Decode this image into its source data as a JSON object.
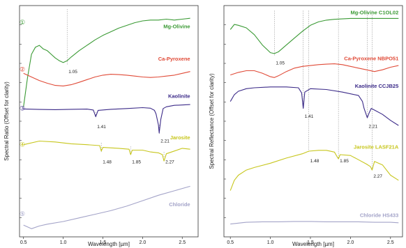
{
  "chart_data": [
    {
      "type": "line",
      "panel": "left",
      "xlabel": "Wavelength [µm]",
      "ylabel": "Spectral Ratio (Offset for clarity)",
      "xlim": [
        0.45,
        2.7
      ],
      "xticks": [
        "0.5",
        "1.0",
        "1.5",
        "2.0",
        "2.5"
      ],
      "xtick_values": [
        0.5,
        1.0,
        1.5,
        2.0,
        2.5
      ],
      "grid": false,
      "series": [
        {
          "name": "Mg-Olivine",
          "number": "①",
          "color": "#3a9a34",
          "x": [
            0.5,
            0.55,
            0.6,
            0.65,
            0.7,
            0.75,
            0.8,
            0.85,
            0.9,
            0.95,
            1.0,
            1.05,
            1.1,
            1.2,
            1.3,
            1.4,
            1.5,
            1.6,
            1.7,
            1.8,
            1.9,
            2.0,
            2.1,
            2.2,
            2.3,
            2.4,
            2.5,
            2.6
          ],
          "y": [
            0.2,
            1.8,
            3.1,
            3.5,
            3.6,
            3.4,
            3.3,
            3.1,
            2.9,
            2.75,
            2.65,
            2.75,
            2.95,
            3.3,
            3.6,
            3.9,
            4.15,
            4.35,
            4.55,
            4.7,
            4.85,
            4.95,
            5.0,
            5.0,
            5.05,
            5.0,
            5.05,
            5.1
          ]
        },
        {
          "name": "Ca-Pyroxene",
          "number": "②",
          "color": "#e04a37",
          "x": [
            0.5,
            0.6,
            0.7,
            0.8,
            0.9,
            1.0,
            1.1,
            1.2,
            1.3,
            1.4,
            1.5,
            1.6,
            1.7,
            1.8,
            1.9,
            2.0,
            2.1,
            2.2,
            2.3,
            2.4,
            2.5,
            2.6
          ],
          "y": [
            2.05,
            1.85,
            1.65,
            1.5,
            1.38,
            1.35,
            1.42,
            1.55,
            1.7,
            1.85,
            1.95,
            2.0,
            1.98,
            1.95,
            1.9,
            1.85,
            1.82,
            1.85,
            1.9,
            1.95,
            2.05,
            2.15
          ]
        },
        {
          "name": "Kaolinite",
          "number": "③",
          "color": "#3b2a88",
          "x": [
            0.5,
            0.7,
            0.9,
            1.1,
            1.3,
            1.38,
            1.41,
            1.44,
            1.6,
            1.8,
            2.0,
            2.1,
            2.15,
            2.17,
            2.2,
            2.21,
            2.23,
            2.26,
            2.3,
            2.4,
            2.5,
            2.6
          ],
          "y": [
            0.08,
            0.05,
            0.04,
            0.06,
            0.07,
            0.02,
            -0.35,
            0.0,
            0.06,
            0.1,
            0.15,
            0.12,
            0.0,
            -0.2,
            -0.8,
            -1.25,
            -0.5,
            0.1,
            0.2,
            0.28,
            0.3,
            0.32
          ]
        },
        {
          "name": "Jarosite",
          "number": "④",
          "color": "#c7c61c",
          "x": [
            0.5,
            0.7,
            0.9,
            1.1,
            1.3,
            1.46,
            1.48,
            1.5,
            1.7,
            1.83,
            1.85,
            1.87,
            2.0,
            2.1,
            2.2,
            2.25,
            2.27,
            2.3,
            2.4,
            2.5,
            2.6
          ],
          "y": [
            -1.9,
            -1.7,
            -1.75,
            -1.85,
            -1.9,
            -1.95,
            -2.25,
            -2.05,
            -2.1,
            -2.15,
            -2.45,
            -2.2,
            -2.2,
            -2.3,
            -2.35,
            -2.45,
            -2.8,
            -2.4,
            -2.25,
            -2.1,
            -2.15
          ]
        },
        {
          "name": "Chloride",
          "number": "⑤",
          "color": "#a3a3c8",
          "x": [
            0.5,
            0.6,
            0.7,
            0.8,
            1.0,
            1.2,
            1.4,
            1.6,
            1.8,
            2.0,
            2.2,
            2.4,
            2.6
          ],
          "y": [
            -6.35,
            -6.55,
            -6.4,
            -6.3,
            -6.15,
            -5.95,
            -5.75,
            -5.55,
            -5.3,
            -5.0,
            -4.7,
            -4.45,
            -4.2
          ]
        }
      ],
      "annotations": [
        {
          "text": "1.05",
          "x": 1.05
        },
        {
          "text": "1.41",
          "x": 1.41
        },
        {
          "text": "2.21",
          "x": 2.21
        },
        {
          "text": "1.48",
          "x": 1.48
        },
        {
          "text": "1.85",
          "x": 1.85
        },
        {
          "text": "2.27",
          "x": 2.27
        }
      ]
    },
    {
      "type": "line",
      "panel": "right",
      "xlabel": "Wavelength [µm]",
      "ylabel": "Spectral Reflectance (Offset for clarity)",
      "xlim": [
        0.42,
        2.65
      ],
      "xticks": [
        "0.5",
        "1.0",
        "1.5",
        "2.0",
        "2.5"
      ],
      "xtick_values": [
        0.5,
        1.0,
        1.5,
        2.0,
        2.5
      ],
      "grid": false,
      "series": [
        {
          "name": "Mg-Olivine C1OL02",
          "color": "#3a9a34",
          "x": [
            0.5,
            0.55,
            0.6,
            0.7,
            0.8,
            0.9,
            1.0,
            1.05,
            1.1,
            1.2,
            1.3,
            1.4,
            1.5,
            1.6,
            1.7,
            1.8,
            2.0,
            2.2,
            2.4,
            2.6
          ],
          "y": [
            5.5,
            5.8,
            5.75,
            5.6,
            5.2,
            4.6,
            4.15,
            4.1,
            4.2,
            4.6,
            5.0,
            5.4,
            5.75,
            5.95,
            6.05,
            6.1,
            6.15,
            6.15,
            6.15,
            6.15
          ]
        },
        {
          "name": "Ca-Pyroxene NBPO51",
          "color": "#e04a37",
          "x": [
            0.5,
            0.6,
            0.7,
            0.8,
            0.9,
            1.0,
            1.05,
            1.1,
            1.2,
            1.3,
            1.4,
            1.5,
            1.6,
            1.7,
            1.8,
            1.9,
            2.0,
            2.1,
            2.2,
            2.3,
            2.4,
            2.5,
            2.6
          ],
          "y": [
            2.85,
            3.0,
            3.1,
            3.1,
            2.95,
            2.75,
            2.7,
            2.8,
            3.05,
            3.25,
            3.35,
            3.4,
            3.45,
            3.48,
            3.5,
            3.45,
            3.35,
            3.25,
            3.15,
            3.05,
            3.15,
            3.3,
            3.4
          ]
        },
        {
          "name": "Kaolinite CCJB25",
          "color": "#3b2a88",
          "x": [
            0.5,
            0.55,
            0.6,
            0.7,
            0.8,
            1.0,
            1.2,
            1.35,
            1.39,
            1.41,
            1.43,
            1.5,
            1.7,
            1.9,
            2.1,
            2.15,
            2.17,
            2.2,
            2.21,
            2.23,
            2.26,
            2.3,
            2.4,
            2.5,
            2.6
          ],
          "y": [
            1.3,
            1.7,
            1.9,
            2.05,
            2.1,
            2.15,
            2.15,
            2.1,
            1.8,
            0.9,
            1.85,
            2.05,
            2.0,
            1.85,
            1.65,
            1.3,
            0.9,
            0.5,
            0.35,
            0.6,
            0.9,
            0.8,
            0.55,
            0.2,
            -0.1
          ]
        },
        {
          "name": "Jarosite LASF21A",
          "color": "#c7c61c",
          "x": [
            0.5,
            0.55,
            0.6,
            0.7,
            0.8,
            1.0,
            1.2,
            1.4,
            1.48,
            1.6,
            1.7,
            1.8,
            1.83,
            1.85,
            1.87,
            2.0,
            2.1,
            2.2,
            2.25,
            2.27,
            2.3,
            2.4,
            2.5,
            2.6
          ],
          "y": [
            -3.9,
            -3.3,
            -3.0,
            -2.7,
            -2.55,
            -2.3,
            -2.0,
            -1.75,
            -1.6,
            -1.55,
            -1.55,
            -1.65,
            -1.9,
            -2.05,
            -1.8,
            -1.85,
            -2.1,
            -2.35,
            -2.5,
            -2.7,
            -2.2,
            -2.4,
            -3.0,
            -3.3
          ]
        },
        {
          "name": "Chloride HS433",
          "color": "#a3a3c8",
          "x": [
            0.5,
            0.7,
            0.9,
            1.1,
            1.3,
            1.5,
            1.7,
            1.9,
            2.1,
            2.3,
            2.5,
            2.6
          ],
          "y": [
            -5.85,
            -5.75,
            -5.72,
            -5.72,
            -5.7,
            -5.7,
            -5.72,
            -5.72,
            -5.72,
            -5.75,
            -5.75,
            -5.78
          ]
        }
      ],
      "annotations": [
        {
          "text": "1.05",
          "x": 1.05
        },
        {
          "text": "1.41",
          "x": 1.41
        },
        {
          "text": "2.21",
          "x": 2.21
        },
        {
          "text": "1.48",
          "x": 1.48
        },
        {
          "text": "1.85",
          "x": 1.85
        },
        {
          "text": "2.27",
          "x": 2.27
        }
      ]
    }
  ]
}
